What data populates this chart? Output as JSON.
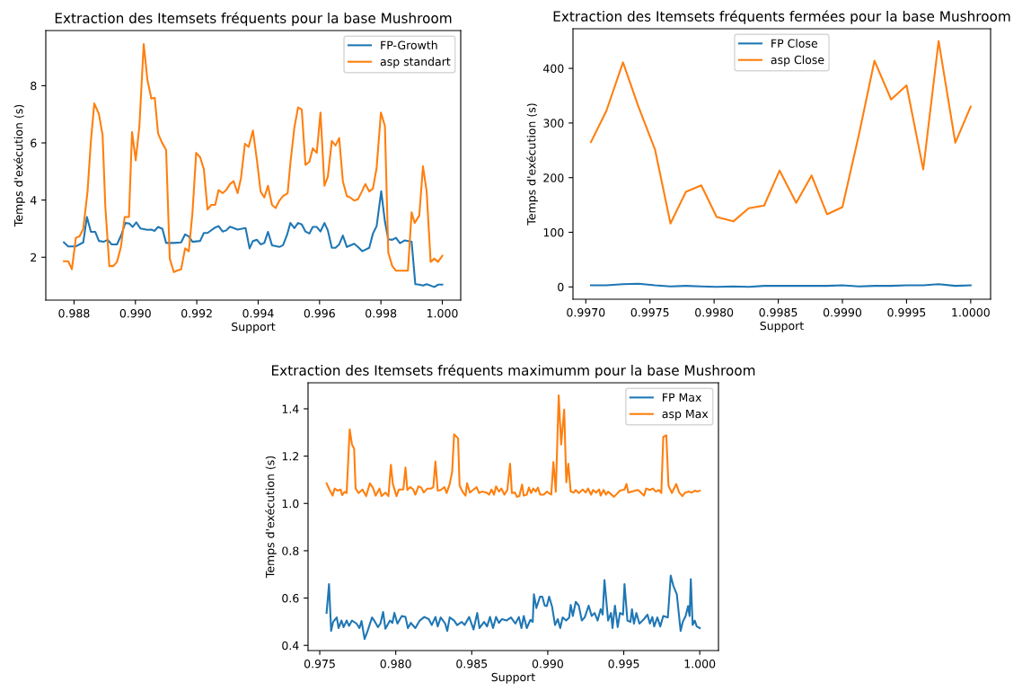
{
  "chart_data": [
    {
      "type": "line",
      "title": "Extraction des Itemsets fréquents pour la base Mushroom",
      "xlabel": "Support",
      "ylabel": "Temps d'exécution (s)",
      "legend": "top right",
      "grid": false,
      "xlim": [
        0.98708,
        1.0006
      ],
      "ylim": [
        0.5,
        9.93
      ],
      "xticks": [
        {
          "value": 0.988,
          "label": "0.988"
        },
        {
          "value": 0.99,
          "label": "0.990"
        },
        {
          "value": 0.992,
          "label": "0.992"
        },
        {
          "value": 0.994,
          "label": "0.994"
        },
        {
          "value": 0.996,
          "label": "0.996"
        },
        {
          "value": 0.998,
          "label": "0.998"
        },
        {
          "value": 1.0,
          "label": "1.000"
        }
      ],
      "yticks": [
        2,
        4,
        6,
        8
      ],
      "series": [
        {
          "name": "FP-Growth",
          "color": "#1f77b4",
          "x": [
            0.98767,
            0.98781,
            0.98806,
            0.9883,
            0.98842,
            0.98855,
            0.98869,
            0.98881,
            0.98896,
            0.9891,
            0.98922,
            0.9894,
            0.98954,
            0.98967,
            0.9898,
            0.98991,
            0.99003,
            0.99016,
            0.99039,
            0.99052,
            0.99062,
            0.99074,
            0.99088,
            0.991,
            0.99125,
            0.99149,
            0.99162,
            0.99174,
            0.99186,
            0.99211,
            0.99223,
            0.99235,
            0.9926,
            0.99271,
            0.99284,
            0.99296,
            0.99308,
            0.99333,
            0.99359,
            0.99372,
            0.99383,
            0.99396,
            0.99408,
            0.9942,
            0.99432,
            0.99445,
            0.99469,
            0.99481,
            0.99494,
            0.99505,
            0.99518,
            0.9953,
            0.99542,
            0.99554,
            0.99567,
            0.99578,
            0.99591,
            0.99603,
            0.99616,
            0.99627,
            0.9964,
            0.99652,
            0.99664,
            0.99676,
            0.99689,
            0.99713,
            0.99725,
            0.99739,
            0.99762,
            0.99774,
            0.99786,
            0.99801,
            0.99813,
            0.99824,
            0.99837,
            0.99849,
            0.99862,
            0.99877,
            0.999,
            0.99912,
            0.99925,
            0.99937,
            0.99949,
            0.99974,
            0.99986,
            1.0
          ],
          "values": [
            2.52,
            2.38,
            2.38,
            2.52,
            3.41,
            2.89,
            2.89,
            2.57,
            2.54,
            2.61,
            2.45,
            2.45,
            2.78,
            3.2,
            3.18,
            3.06,
            3.22,
            3.01,
            2.96,
            2.97,
            2.92,
            3.06,
            2.99,
            2.5,
            2.5,
            2.52,
            2.8,
            2.73,
            2.54,
            2.57,
            2.85,
            2.85,
            3.04,
            3.09,
            2.9,
            2.94,
            3.07,
            2.97,
            3.02,
            2.31,
            2.57,
            2.61,
            2.45,
            2.5,
            2.89,
            2.42,
            2.36,
            2.42,
            2.78,
            3.2,
            3.02,
            3.2,
            3.15,
            2.9,
            2.83,
            3.06,
            3.06,
            2.9,
            3.2,
            2.94,
            2.33,
            2.33,
            2.45,
            2.76,
            2.36,
            2.47,
            2.36,
            2.21,
            2.33,
            2.83,
            3.09,
            4.31,
            3.25,
            2.63,
            2.61,
            2.68,
            2.49,
            2.59,
            2.54,
            1.06,
            1.04,
            1.01,
            1.06,
            0.96,
            1.04,
            1.04
          ]
        },
        {
          "name": "asp standart",
          "color": "#ff7f0e",
          "x": [
            0.98767,
            0.98781,
            0.98793,
            0.98806,
            0.98818,
            0.9883,
            0.98844,
            0.98855,
            0.98866,
            0.98881,
            0.98893,
            0.98902,
            0.98915,
            0.98928,
            0.9894,
            0.98953,
            0.98965,
            0.98979,
            0.98989,
            0.99001,
            0.99013,
            0.99027,
            0.99039,
            0.99052,
            0.99063,
            0.99074,
            0.99086,
            0.991,
            0.99112,
            0.99125,
            0.99135,
            0.99149,
            0.99162,
            0.99174,
            0.99186,
            0.99198,
            0.99211,
            0.99223,
            0.99235,
            0.99247,
            0.9926,
            0.99271,
            0.99284,
            0.99296,
            0.99308,
            0.9932,
            0.99333,
            0.99344,
            0.99357,
            0.99369,
            0.99383,
            0.99396,
            0.99408,
            0.9942,
            0.99432,
            0.99445,
            0.99457,
            0.99469,
            0.99481,
            0.99496,
            0.99505,
            0.99518,
            0.9953,
            0.99542,
            0.99554,
            0.99567,
            0.99578,
            0.99591,
            0.99603,
            0.99616,
            0.99627,
            0.9964,
            0.99652,
            0.99664,
            0.99676,
            0.99689,
            0.997,
            0.99713,
            0.99725,
            0.99738,
            0.99749,
            0.99762,
            0.99774,
            0.99786,
            0.998,
            0.99813,
            0.99824,
            0.99837,
            0.99849,
            0.99862,
            0.99888,
            0.999,
            0.9991,
            0.99925,
            0.99937,
            0.99949,
            0.99962,
            0.99974,
            0.99986,
            1.0
          ],
          "values": [
            1.86,
            1.86,
            1.58,
            2.68,
            2.73,
            2.99,
            4.3,
            6.07,
            7.38,
            7.01,
            6.28,
            3.77,
            1.69,
            1.69,
            1.84,
            2.37,
            3.41,
            3.41,
            6.38,
            5.39,
            6.59,
            9.46,
            8.21,
            7.55,
            7.58,
            6.33,
            6.02,
            5.76,
            1.95,
            1.48,
            1.53,
            1.58,
            2.31,
            2.21,
            3.57,
            5.65,
            5.5,
            5.08,
            3.67,
            3.83,
            3.83,
            4.35,
            4.24,
            4.35,
            4.56,
            4.66,
            4.24,
            4.77,
            5.97,
            5.86,
            6.43,
            5.39,
            4.3,
            4.09,
            4.5,
            3.83,
            3.72,
            3.98,
            4.14,
            4.24,
            5.29,
            6.54,
            7.24,
            7.17,
            5.23,
            5.34,
            5.81,
            5.65,
            7.06,
            4.5,
            4.82,
            6.07,
            5.91,
            6.17,
            4.66,
            4.14,
            4.09,
            3.98,
            4.03,
            4.3,
            4.56,
            4.3,
            4.4,
            5.13,
            7.06,
            6.59,
            2.16,
            1.69,
            1.53,
            1.53,
            1.53,
            3.57,
            3.2,
            3.46,
            5.18,
            4.3,
            1.84,
            1.95,
            1.84,
            2.05
          ]
        }
      ]
    },
    {
      "type": "line",
      "title": "Extraction des Itemsets fréquents fermées pour la base Mushroom",
      "xlabel": "Support",
      "ylabel": "Temps d'exécution (s)",
      "legend": "top",
      "grid": false,
      "xlim": [
        0.9969,
        1.000155
      ],
      "ylim": [
        -22.5,
        472.5
      ],
      "xticks": [
        {
          "value": 0.997,
          "label": "0.9970"
        },
        {
          "value": 0.9975,
          "label": "0.9975"
        },
        {
          "value": 0.998,
          "label": "0.9980"
        },
        {
          "value": 0.9985,
          "label": "0.9985"
        },
        {
          "value": 0.999,
          "label": "0.9990"
        },
        {
          "value": 0.9995,
          "label": "0.9995"
        },
        {
          "value": 1.0,
          "label": "1.0000"
        }
      ],
      "yticks": [
        0,
        100,
        200,
        300,
        400
      ],
      "x": [
        0.99704,
        0.99716,
        0.99729,
        0.99741,
        0.99754,
        0.99766,
        0.99778,
        0.9979,
        0.99802,
        0.99815,
        0.99827,
        0.99839,
        0.99851,
        0.99864,
        0.99876,
        0.99888,
        0.999,
        0.99913,
        0.99925,
        0.99938,
        0.9995,
        0.99963,
        0.99975,
        0.99988,
        1.0
      ],
      "series": [
        {
          "name": "FP Close",
          "color": "#1f77b4",
          "values": [
            3,
            3,
            5,
            6,
            3,
            1,
            2,
            1,
            0,
            1,
            0,
            2,
            2,
            2,
            2,
            2,
            3,
            1,
            2,
            2,
            3,
            3,
            5,
            2,
            3
          ]
        },
        {
          "name": "asp Close",
          "color": "#ff7f0e",
          "values": [
            265,
            322,
            411,
            330,
            251,
            116,
            174,
            186,
            128,
            120,
            144,
            149,
            213,
            154,
            204,
            133,
            146,
            280,
            414,
            343,
            369,
            215,
            450,
            264,
            330
          ]
        }
      ]
    },
    {
      "type": "line",
      "title": "Extraction des Itemsets fréquents maximumm pour la base Mushroom",
      "xlabel": "Support",
      "ylabel": "Temps d'exécution (s)",
      "legend": "top right",
      "grid": false,
      "xlim": [
        0.97423,
        1.00123
      ],
      "ylim": [
        0.378,
        1.51
      ],
      "xticks": [
        {
          "value": 0.975,
          "label": "0.975"
        },
        {
          "value": 0.98,
          "label": "0.980"
        },
        {
          "value": 0.985,
          "label": "0.985"
        },
        {
          "value": 0.99,
          "label": "0.990"
        },
        {
          "value": 0.995,
          "label": "0.995"
        },
        {
          "value": 1.0,
          "label": "1.000"
        }
      ],
      "yticks": [
        {
          "value": 0.4,
          "label": "0.4"
        },
        {
          "value": 0.6,
          "label": "0.6"
        },
        {
          "value": 0.8,
          "label": "0.8"
        },
        {
          "value": 1.0,
          "label": "1.0"
        },
        {
          "value": 1.2,
          "label": "1.2"
        },
        {
          "value": 1.4,
          "label": "1.4"
        }
      ],
      "series": [
        {
          "name": "FP Max",
          "color": "#1f77b4",
          "x": [
            0.97545,
            0.97561,
            0.97575,
            0.97588,
            0.97612,
            0.97624,
            0.97643,
            0.97657,
            0.97677,
            0.97693,
            0.97712,
            0.97742,
            0.97761,
            0.97775,
            0.97795,
            0.97815,
            0.97844,
            0.97864,
            0.97883,
            0.97899,
            0.97917,
            0.97932,
            0.97962,
            0.97978,
            0.97991,
            0.98011,
            0.9804,
            0.98064,
            0.9808,
            0.98099,
            0.98129,
            0.98158,
            0.98188,
            0.98217,
            0.98237,
            0.98261,
            0.98276,
            0.98296,
            0.98325,
            0.98339,
            0.98355,
            0.98384,
            0.98404,
            0.98434,
            0.98453,
            0.98483,
            0.98512,
            0.98536,
            0.98551,
            0.98581,
            0.98601,
            0.9862,
            0.9864,
            0.9866,
            0.98679,
            0.98699,
            0.98728,
            0.98758,
            0.98787,
            0.9881,
            0.98827,
            0.98842,
            0.98862,
            0.98886,
            0.98901,
            0.98909,
            0.98925,
            0.98949,
            0.98964,
            0.9898,
            0.98994,
            0.99009,
            0.99029,
            0.99048,
            0.99066,
            0.99082,
            0.99098,
            0.99121,
            0.99141,
            0.99151,
            0.99165,
            0.99184,
            0.99204,
            0.99224,
            0.99243,
            0.99269,
            0.99289,
            0.99308,
            0.99328,
            0.99348,
            0.99361,
            0.99373,
            0.99397,
            0.99416,
            0.99426,
            0.99442,
            0.9946,
            0.99475,
            0.99495,
            0.99505,
            0.99524,
            0.99544,
            0.99554,
            0.99567,
            0.99583,
            0.99603,
            0.99633,
            0.99656,
            0.99672,
            0.99688,
            0.997,
            0.99721,
            0.9974,
            0.9976,
            0.9979,
            0.99809,
            0.99825,
            0.99849,
            0.99874,
            0.99888,
            0.99907,
            0.99923,
            0.99933,
            0.99941,
            0.99953,
            0.99967,
            0.9998,
            1.0
          ],
          "values": [
            0.537,
            0.659,
            0.461,
            0.499,
            0.518,
            0.473,
            0.505,
            0.477,
            0.505,
            0.482,
            0.505,
            0.492,
            0.473,
            0.503,
            0.427,
            0.461,
            0.518,
            0.499,
            0.477,
            0.492,
            0.541,
            0.47,
            0.505,
            0.495,
            0.537,
            0.492,
            0.524,
            0.52,
            0.473,
            0.495,
            0.473,
            0.505,
            0.52,
            0.511,
            0.486,
            0.52,
            0.48,
            0.518,
            0.492,
            0.461,
            0.518,
            0.505,
            0.486,
            0.499,
            0.486,
            0.52,
            0.467,
            0.537,
            0.473,
            0.499,
            0.48,
            0.52,
            0.473,
            0.52,
            0.495,
            0.511,
            0.505,
            0.518,
            0.492,
            0.52,
            0.473,
            0.524,
            0.473,
            0.508,
            0.499,
            0.616,
            0.558,
            0.606,
            0.606,
            0.568,
            0.566,
            0.606,
            0.562,
            0.486,
            0.511,
            0.473,
            0.518,
            0.505,
            0.518,
            0.571,
            0.524,
            0.584,
            0.568,
            0.505,
            0.518,
            0.568,
            0.524,
            0.537,
            0.505,
            0.553,
            0.53,
            0.676,
            0.505,
            0.537,
            0.473,
            0.568,
            0.477,
            0.537,
            0.53,
            0.659,
            0.505,
            0.499,
            0.553,
            0.492,
            0.537,
            0.492,
            0.511,
            0.53,
            0.492,
            0.52,
            0.48,
            0.518,
            0.48,
            0.524,
            0.518,
            0.695,
            0.654,
            0.616,
            0.461,
            0.499,
            0.524,
            0.566,
            0.524,
            0.68,
            0.486,
            0.505,
            0.48,
            0.473
          ]
        },
        {
          "name": "asp Max",
          "color": "#ff7f0e",
          "x": [
            0.97545,
            0.97565,
            0.97585,
            0.97598,
            0.97618,
            0.97638,
            0.97647,
            0.97663,
            0.97677,
            0.97697,
            0.97712,
            0.97726,
            0.97736,
            0.97755,
            0.97781,
            0.97805,
            0.9783,
            0.9785,
            0.97868,
            0.97893,
            0.97907,
            0.97932,
            0.97952,
            0.97968,
            0.97981,
            0.98005,
            0.98021,
            0.9804,
            0.9805,
            0.98064,
            0.98076,
            0.98096,
            0.98115,
            0.98129,
            0.98149,
            0.98168,
            0.98184,
            0.98208,
            0.98233,
            0.98247,
            0.98261,
            0.98276,
            0.98296,
            0.9832,
            0.98335,
            0.98355,
            0.98371,
            0.98384,
            0.9841,
            0.9842,
            0.98439,
            0.98459,
            0.98469,
            0.98488,
            0.98508,
            0.98532,
            0.98548,
            0.98567,
            0.98597,
            0.98614,
            0.9863,
            0.98646,
            0.9866,
            0.98679,
            0.98695,
            0.98715,
            0.98734,
            0.98752,
            0.98764,
            0.98784,
            0.98797,
            0.98813,
            0.98831,
            0.98842,
            0.98862,
            0.98876,
            0.9889,
            0.98905,
            0.98921,
            0.98935,
            0.9895,
            0.98974,
            0.98994,
            0.99023,
            0.99037,
            0.99053,
            0.99072,
            0.99088,
            0.99108,
            0.99122,
            0.99135,
            0.99151,
            0.99171,
            0.99184,
            0.99204,
            0.9923,
            0.99249,
            0.99265,
            0.99285,
            0.99298,
            0.99318,
            0.99338,
            0.99348,
            0.99367,
            0.99383,
            0.99397,
            0.99436,
            0.99475,
            0.99505,
            0.99518,
            0.9953,
            0.99554,
            0.99593,
            0.99613,
            0.99633,
            0.99648,
            0.99672,
            0.99692,
            0.99711,
            0.99731,
            0.99747,
            0.9976,
            0.9978,
            0.99794,
            0.99816,
            0.99845,
            0.99865,
            0.99885,
            0.99904,
            0.99927,
            0.99947,
            0.99967,
            0.99986,
            1.0
          ],
          "values": [
            1.085,
            1.057,
            1.033,
            1.063,
            1.054,
            1.059,
            1.035,
            1.049,
            1.044,
            1.313,
            1.249,
            1.232,
            1.063,
            1.044,
            1.059,
            1.031,
            1.085,
            1.066,
            1.033,
            1.063,
            1.031,
            1.046,
            1.031,
            1.163,
            1.082,
            1.031,
            1.059,
            1.059,
            1.059,
            1.152,
            1.057,
            1.069,
            1.059,
            1.037,
            1.072,
            1.067,
            1.046,
            1.063,
            1.063,
            1.069,
            1.177,
            1.054,
            1.057,
            1.069,
            1.044,
            1.082,
            1.134,
            1.292,
            1.275,
            1.076,
            1.05,
            1.033,
            1.085,
            1.046,
            1.057,
            1.069,
            1.044,
            1.05,
            1.046,
            1.037,
            1.059,
            1.037,
            1.072,
            1.05,
            1.063,
            1.037,
            1.057,
            1.168,
            1.044,
            1.046,
            1.028,
            1.031,
            1.08,
            1.033,
            1.037,
            1.067,
            1.044,
            1.063,
            1.05,
            1.067,
            1.037,
            1.037,
            1.05,
            1.037,
            1.175,
            1.05,
            1.457,
            1.249,
            1.397,
            1.089,
            1.168,
            1.05,
            1.046,
            1.057,
            1.044,
            1.059,
            1.046,
            1.063,
            1.037,
            1.057,
            1.046,
            1.059,
            1.033,
            1.057,
            1.037,
            1.05,
            1.028,
            1.054,
            1.059,
            1.082,
            1.046,
            1.05,
            1.057,
            1.046,
            1.033,
            1.063,
            1.057,
            1.063,
            1.05,
            1.057,
            1.044,
            1.281,
            1.288,
            1.076,
            1.044,
            1.082,
            1.046,
            1.031,
            1.046,
            1.05,
            1.046,
            1.054,
            1.05,
            1.054
          ]
        }
      ]
    }
  ]
}
